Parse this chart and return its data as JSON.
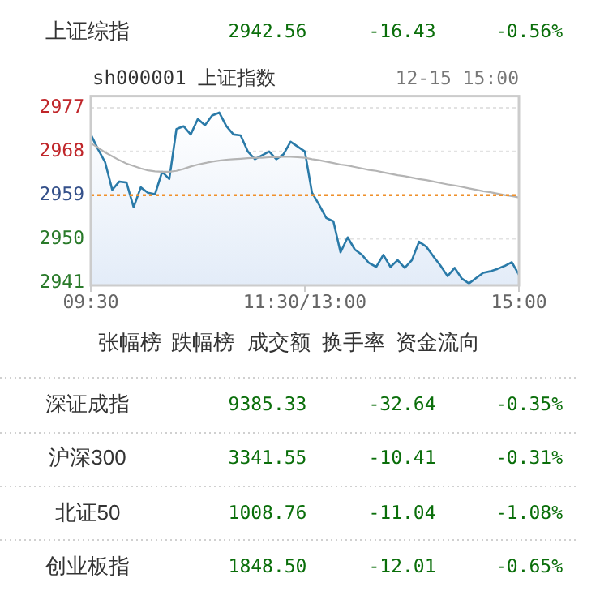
{
  "chart_data": [
    {
      "type": "other",
      "annotations": [
        "上证综指",
        "2942.56",
        "-16.43",
        "-0.56%"
      ]
    },
    {
      "type": "line",
      "title": "sh000001 上证指数",
      "subtitle": "12-15 15:00",
      "categories": [
        "09:30",
        null,
        null,
        null,
        null,
        null,
        null,
        null,
        null,
        null,
        null,
        null,
        null,
        null,
        null,
        null,
        null,
        null,
        null,
        null,
        null,
        null,
        null,
        null,
        null,
        null,
        null,
        null,
        null,
        null,
        "11:30/13:00",
        null,
        null,
        null,
        null,
        null,
        null,
        null,
        null,
        null,
        null,
        null,
        null,
        null,
        null,
        null,
        null,
        null,
        null,
        null,
        null,
        null,
        null,
        null,
        null,
        null,
        null,
        null,
        null,
        null,
        "15:00"
      ],
      "ylim": [
        2940.4,
        2979.4
      ],
      "yticks": [
        2941,
        2950,
        2959,
        2968,
        2977
      ],
      "grid": "y",
      "ref_lines": [
        {
          "axis": "y",
          "value": 2959,
          "color": "#f0902a",
          "line_style": "dotted"
        }
      ],
      "series": [
        {
          "type": "area",
          "color": "#2a7aa8",
          "values": [
            2971.5,
            2968.5,
            2965.8,
            2960.1,
            2961.8,
            2961.6,
            2956.5,
            2960.6,
            2959.5,
            2959.2,
            2963.8,
            2962.3,
            2972.6,
            2973.2,
            2971.5,
            2974.7,
            2973.4,
            2975.4,
            2976.0,
            2973.2,
            2971.5,
            2971.3,
            2968.0,
            2966.4,
            2967.2,
            2968.0,
            2966.4,
            2967.4,
            2970.0,
            2969.0,
            2968.0,
            2959.5,
            2957.0,
            2954.3,
            2953.6,
            2947.2,
            2950.3,
            2947.8,
            2946.7,
            2945.0,
            2944.2,
            2946.7,
            2944.2,
            2945.6,
            2944.0,
            2945.6,
            2949.4,
            2948.4,
            2946.4,
            2944.5,
            2942.3,
            2944.0,
            2941.8,
            2940.8,
            2941.9,
            2943.0,
            2943.3,
            2943.8,
            2944.4,
            2945.2,
            2942.6
          ]
        },
        {
          "type": "line",
          "color": "#b4b4b4",
          "values": [
            2969.7,
            2968.8,
            2967.8,
            2967.0,
            2966.2,
            2965.5,
            2965.0,
            2964.5,
            2964.1,
            2963.9,
            2963.8,
            2963.8,
            2964.0,
            2964.4,
            2964.9,
            2965.3,
            2965.6,
            2965.9,
            2966.1,
            2966.3,
            2966.4,
            2966.5,
            2966.6,
            2966.7,
            2966.7,
            2966.8,
            2966.8,
            2966.9,
            2966.9,
            2966.8,
            2966.7,
            2966.4,
            2966.2,
            2965.9,
            2965.6,
            2965.3,
            2965.1,
            2964.8,
            2964.5,
            2964.2,
            2964.0,
            2963.7,
            2963.4,
            2963.1,
            2962.9,
            2962.6,
            2962.3,
            2962.1,
            2961.8,
            2961.5,
            2961.2,
            2961.0,
            2960.7,
            2960.4,
            2960.1,
            2959.8,
            2959.6,
            2959.3,
            2959.0,
            2958.8,
            2958.5
          ]
        }
      ]
    },
    {
      "type": "other",
      "annotations": [
        "张幅榜",
        "跌幅榜",
        "成交额",
        "换手率",
        "资金流向"
      ]
    },
    {
      "type": "other",
      "annotations": [
        "深证成指",
        "9385.33",
        "-32.64",
        "-0.35%",
        "沪深300",
        "3341.55",
        "-10.41",
        "-0.31%",
        "北证50",
        "1008.76",
        "-11.04",
        "-1.08%",
        "创业板指",
        "1848.50",
        "-12.01",
        "-0.65%"
      ]
    }
  ]
}
